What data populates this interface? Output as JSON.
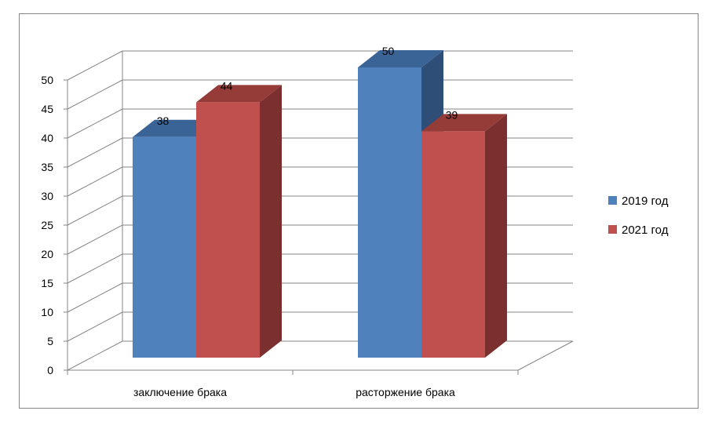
{
  "chart_data": {
    "type": "bar",
    "categories": [
      "заключение брака",
      "расторжение брака"
    ],
    "series": [
      {
        "name": "2019 год",
        "values": [
          38,
          50
        ],
        "color": "#4F81BD",
        "side_color": "#2E4E78",
        "top_color": "#3A6496"
      },
      {
        "name": "2021 год",
        "values": [
          44,
          39
        ],
        "color": "#C0504D",
        "side_color": "#7B302F",
        "top_color": "#953B38"
      }
    ],
    "ylim": [
      0,
      50
    ],
    "yticks": [
      0,
      5,
      10,
      15,
      20,
      25,
      30,
      35,
      40,
      45,
      50
    ],
    "grid": true,
    "legend": "right",
    "style": "3d-column"
  }
}
